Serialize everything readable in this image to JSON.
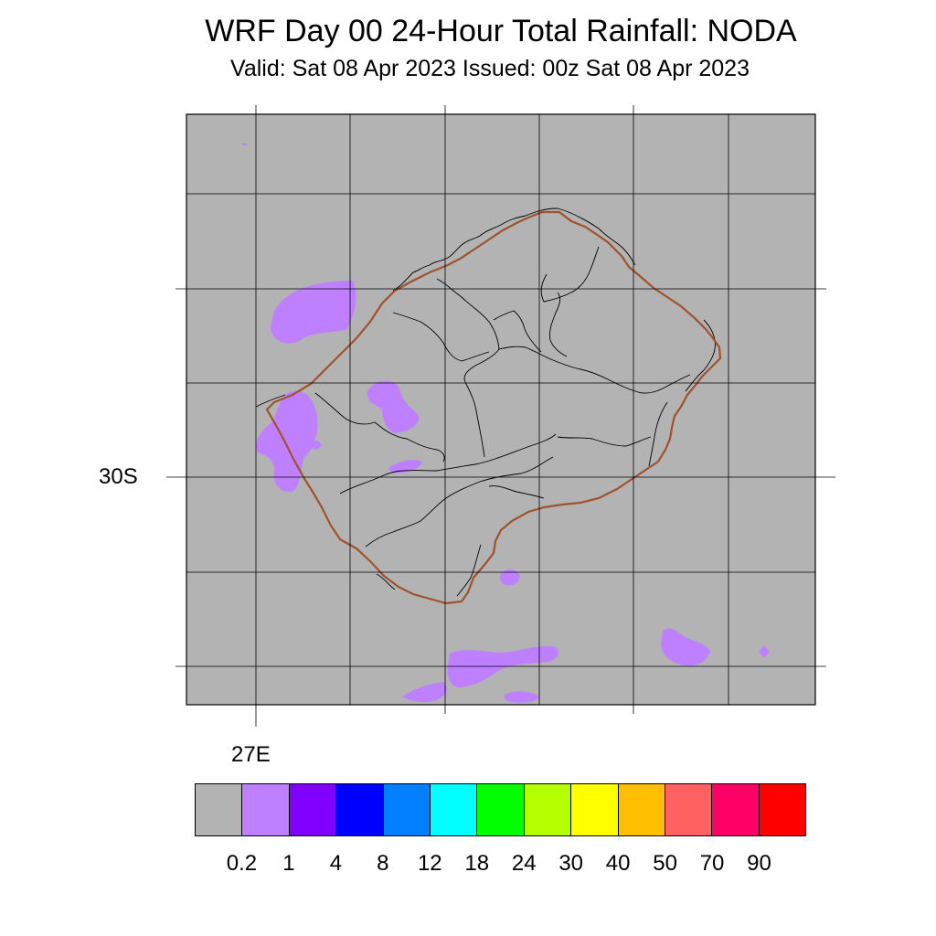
{
  "title": "WRF Day 00 24-Hour Total Rainfall: NODA",
  "subtitle": "Valid: Sat 08 Apr 2023  Issued: 00z Sat 08 Apr 2023",
  "axes": {
    "lat_label": "30S",
    "lon_label": "27E"
  },
  "map": {
    "background_color": "#b3b3b3",
    "rain_color": "#bf80ff",
    "outline_color": "#a0522d"
  },
  "legend": {
    "colors": [
      "#b3b3b3",
      "#bf80ff",
      "#8000ff",
      "#0000ff",
      "#0080ff",
      "#00ffff",
      "#00ff00",
      "#b3ff00",
      "#ffff00",
      "#ffbf00",
      "#ff6060",
      "#ff0066",
      "#ff0000"
    ],
    "labels": [
      "0.2",
      "1",
      "4",
      "8",
      "12",
      "18",
      "24",
      "30",
      "40",
      "50",
      "70",
      "90"
    ]
  }
}
